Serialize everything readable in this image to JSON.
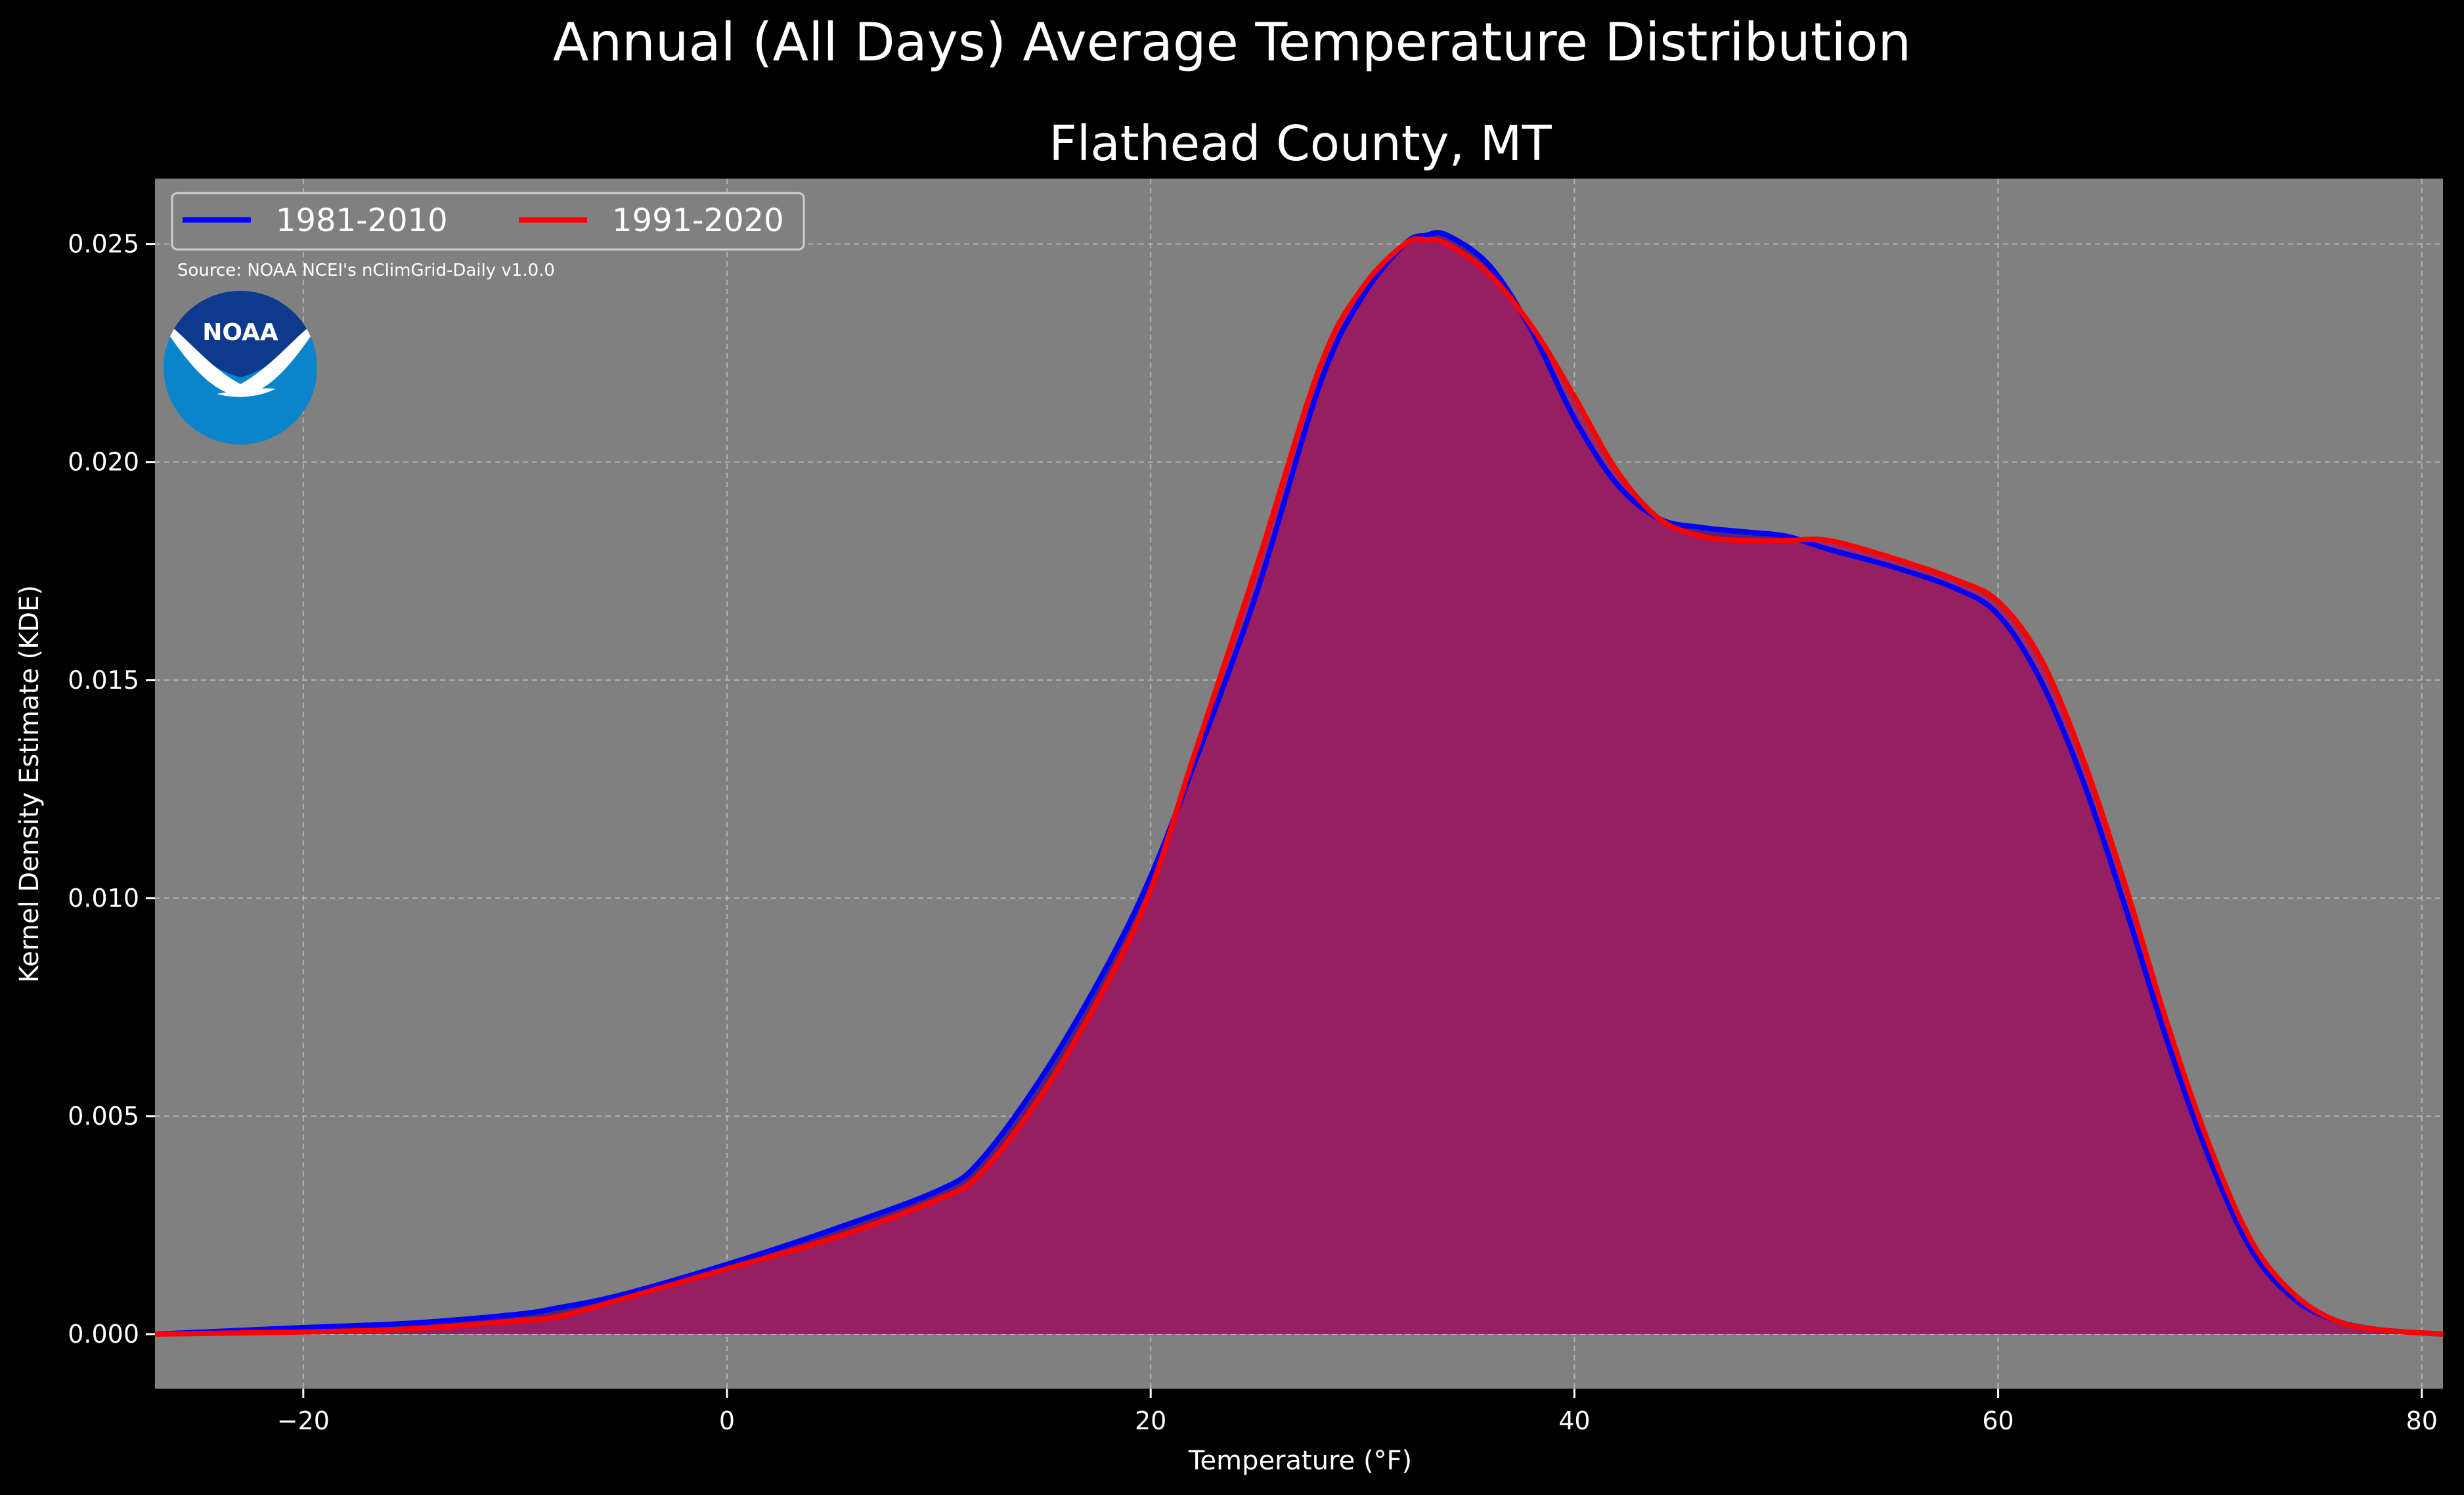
{
  "chart_data": {
    "type": "area",
    "title": "Annual (All Days) Average Temperature Distribution",
    "subtitle": "Flathead County, MT",
    "xlabel": "Temperature (°F)",
    "ylabel": "Kernel Density Estimate (KDE)",
    "source": "Source: NOAA NCEI's nClimGrid-Daily v1.0.0",
    "logo_text": "NOAA",
    "xlim": [
      -27,
      81
    ],
    "ylim": [
      -0.00125,
      0.0265
    ],
    "xticks": [
      -20,
      0,
      20,
      40,
      60,
      80
    ],
    "yticks": [
      0.0,
      0.005,
      0.01,
      0.015,
      0.02,
      0.025
    ],
    "xtick_labels": [
      "−20",
      "0",
      "20",
      "40",
      "60",
      "80"
    ],
    "ytick_labels": [
      "0.000",
      "0.005",
      "0.010",
      "0.015",
      "0.020",
      "0.025"
    ],
    "grid": true,
    "legend_position": "top-left",
    "colors": {
      "background": "#000000",
      "plot_bg": "#808080",
      "fill": "#9e1f5e"
    },
    "series": [
      {
        "name": "1981-2010",
        "color": "#0000ff",
        "x": [
          -27,
          -20,
          -15,
          -10,
          -8,
          -5,
          0,
          5,
          10,
          12,
          15,
          18,
          20,
          22,
          25,
          28,
          30,
          32,
          33,
          34,
          36,
          38,
          40,
          42,
          44,
          46,
          48,
          50,
          52,
          55,
          58,
          60,
          62,
          64,
          66,
          68,
          70,
          72,
          74,
          76,
          78,
          81
        ],
        "y": [
          0.0,
          0.00015,
          0.00025,
          0.00045,
          0.0006,
          0.0009,
          0.0016,
          0.0024,
          0.0033,
          0.004,
          0.006,
          0.0085,
          0.0105,
          0.013,
          0.017,
          0.0218,
          0.0238,
          0.025,
          0.0252,
          0.0252,
          0.0245,
          0.023,
          0.021,
          0.0195,
          0.0187,
          0.0185,
          0.0184,
          0.0183,
          0.018,
          0.0176,
          0.0171,
          0.0165,
          0.015,
          0.0127,
          0.0098,
          0.0067,
          0.004,
          0.0019,
          0.0008,
          0.0003,
          0.0001,
          0.0
        ]
      },
      {
        "name": "1991-2020",
        "color": "#ff0000",
        "x": [
          -27,
          -20,
          -15,
          -10,
          -8,
          -5,
          0,
          5,
          10,
          12,
          15,
          18,
          20,
          22,
          25,
          28,
          30,
          32,
          33,
          34,
          36,
          38,
          40,
          42,
          44,
          46,
          48,
          50,
          52,
          55,
          58,
          60,
          62,
          64,
          66,
          68,
          70,
          72,
          74,
          76,
          78,
          81
        ],
        "y": [
          0.0,
          5e-05,
          0.00012,
          0.0003,
          0.0004,
          0.0008,
          0.0015,
          0.0022,
          0.0031,
          0.0037,
          0.0056,
          0.0081,
          0.0102,
          0.0132,
          0.0176,
          0.0222,
          0.024,
          0.025,
          0.0251,
          0.025,
          0.0243,
          0.0231,
          0.0215,
          0.0198,
          0.0187,
          0.0183,
          0.0182,
          0.0182,
          0.0182,
          0.0178,
          0.0173,
          0.0168,
          0.0155,
          0.0132,
          0.0103,
          0.0071,
          0.0043,
          0.0021,
          0.0009,
          0.0003,
          0.0001,
          0.0
        ]
      }
    ]
  }
}
